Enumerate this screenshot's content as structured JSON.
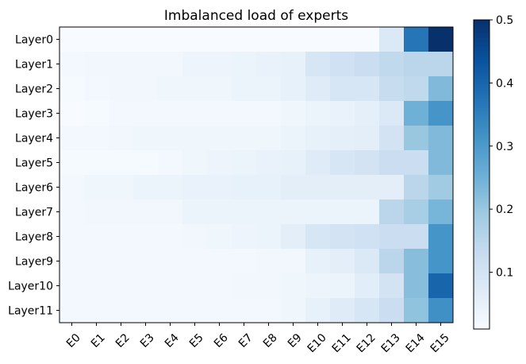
{
  "chart_data": {
    "type": "heatmap",
    "title": "Imbalanced load of experts",
    "xlabel": "",
    "ylabel": "",
    "x_labels": [
      "E0",
      "E1",
      "E2",
      "E3",
      "E4",
      "E5",
      "E6",
      "E7",
      "E8",
      "E9",
      "E10",
      "E11",
      "E12",
      "E13",
      "E14",
      "E15"
    ],
    "y_labels": [
      "Layer0",
      "Layer1",
      "Layer2",
      "Layer3",
      "Layer4",
      "Layer5",
      "Layer6",
      "Layer7",
      "Layer8",
      "Layer9",
      "Layer10",
      "Layer11"
    ],
    "values": [
      [
        0.01,
        0.01,
        0.01,
        0.01,
        0.01,
        0.01,
        0.01,
        0.01,
        0.01,
        0.01,
        0.01,
        0.01,
        0.01,
        0.08,
        0.37,
        0.5
      ],
      [
        0.02,
        0.025,
        0.025,
        0.025,
        0.025,
        0.035,
        0.035,
        0.04,
        0.045,
        0.05,
        0.09,
        0.11,
        0.12,
        0.14,
        0.15,
        0.15
      ],
      [
        0.015,
        0.02,
        0.025,
        0.025,
        0.03,
        0.03,
        0.03,
        0.04,
        0.04,
        0.05,
        0.07,
        0.09,
        0.09,
        0.13,
        0.14,
        0.23
      ],
      [
        0.01,
        0.015,
        0.02,
        0.02,
        0.02,
        0.02,
        0.02,
        0.02,
        0.02,
        0.03,
        0.04,
        0.045,
        0.055,
        0.08,
        0.25,
        0.31
      ],
      [
        0.02,
        0.02,
        0.025,
        0.03,
        0.03,
        0.03,
        0.03,
        0.03,
        0.03,
        0.04,
        0.05,
        0.055,
        0.06,
        0.1,
        0.2,
        0.23
      ],
      [
        0.015,
        0.015,
        0.015,
        0.015,
        0.02,
        0.03,
        0.035,
        0.04,
        0.045,
        0.05,
        0.07,
        0.09,
        0.1,
        0.12,
        0.12,
        0.23
      ],
      [
        0.02,
        0.03,
        0.03,
        0.04,
        0.04,
        0.045,
        0.045,
        0.05,
        0.05,
        0.06,
        0.06,
        0.06,
        0.06,
        0.06,
        0.15,
        0.19
      ],
      [
        0.02,
        0.025,
        0.025,
        0.025,
        0.025,
        0.04,
        0.04,
        0.04,
        0.04,
        0.04,
        0.04,
        0.04,
        0.04,
        0.15,
        0.18,
        0.24
      ],
      [
        0.02,
        0.02,
        0.02,
        0.02,
        0.02,
        0.025,
        0.03,
        0.035,
        0.04,
        0.06,
        0.09,
        0.1,
        0.11,
        0.12,
        0.12,
        0.31
      ],
      [
        0.02,
        0.02,
        0.02,
        0.02,
        0.02,
        0.02,
        0.02,
        0.02,
        0.025,
        0.025,
        0.05,
        0.06,
        0.08,
        0.15,
        0.22,
        0.31
      ],
      [
        0.02,
        0.02,
        0.02,
        0.02,
        0.02,
        0.02,
        0.02,
        0.025,
        0.025,
        0.03,
        0.035,
        0.04,
        0.065,
        0.1,
        0.22,
        0.4
      ],
      [
        0.02,
        0.02,
        0.02,
        0.02,
        0.02,
        0.02,
        0.02,
        0.02,
        0.02,
        0.03,
        0.05,
        0.07,
        0.09,
        0.12,
        0.21,
        0.32
      ]
    ],
    "colorbar": {
      "ticks": [
        0.1,
        0.2,
        0.3,
        0.4,
        0.5
      ],
      "tick_labels": [
        "0.1",
        "0.2",
        "0.3",
        "0.4",
        "0.5"
      ],
      "range": [
        0.01,
        0.5
      ]
    },
    "colormap": "Blues"
  }
}
